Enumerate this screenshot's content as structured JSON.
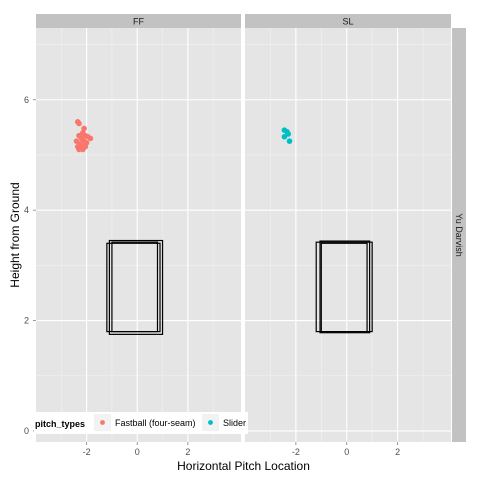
{
  "chart_data": {
    "type": "scatter",
    "facets": [
      "FF",
      "SL"
    ],
    "row_strip": "Yu Darvish",
    "xlabel": "Horizontal Pitch Location",
    "ylabel": "Height from Ground",
    "xlim": [
      -4,
      4.1
    ],
    "ylim": [
      -0.2,
      7.3
    ],
    "x_ticks": [
      -2,
      0,
      2
    ],
    "y_ticks": [
      0,
      2,
      4,
      6
    ],
    "grid": true,
    "legend": {
      "title": "pitch_types",
      "placement": "bottom-left",
      "entries": [
        {
          "label": "Fastball (four-seam)",
          "color": "#F8766D"
        },
        {
          "label": "Slider",
          "color": "#00BFC4"
        }
      ]
    },
    "strike_zones": {
      "FF": [
        {
          "x0": -1.2,
          "x1": 0.9,
          "y0": 1.8,
          "y1": 3.4
        },
        {
          "x0": -1.1,
          "x1": 1.0,
          "y0": 1.75,
          "y1": 3.45
        },
        {
          "x0": -1.0,
          "x1": 0.8,
          "y0": 1.8,
          "y1": 3.42
        }
      ],
      "SL": [
        {
          "x0": -1.2,
          "x1": 1.0,
          "y0": 1.8,
          "y1": 3.42
        },
        {
          "x0": -1.05,
          "x1": 0.9,
          "y0": 1.78,
          "y1": 3.44
        },
        {
          "x0": -1.0,
          "x1": 0.8,
          "y0": 1.8,
          "y1": 3.4
        }
      ]
    },
    "series": [
      {
        "name": "Fastball (four-seam)",
        "facet": "FF",
        "color": "#F8766D",
        "points": [
          {
            "x": -2.35,
            "y": 5.6
          },
          {
            "x": -2.3,
            "y": 5.57
          },
          {
            "x": -2.1,
            "y": 5.48
          },
          {
            "x": -2.15,
            "y": 5.4
          },
          {
            "x": -2.3,
            "y": 5.35
          },
          {
            "x": -2.05,
            "y": 5.35
          },
          {
            "x": -1.95,
            "y": 5.33
          },
          {
            "x": -1.85,
            "y": 5.3
          },
          {
            "x": -2.2,
            "y": 5.3
          },
          {
            "x": -2.4,
            "y": 5.25
          },
          {
            "x": -2.1,
            "y": 5.25
          },
          {
            "x": -2.0,
            "y": 5.22
          },
          {
            "x": -2.25,
            "y": 5.2
          },
          {
            "x": -2.35,
            "y": 5.15
          },
          {
            "x": -2.15,
            "y": 5.15
          },
          {
            "x": -2.05,
            "y": 5.15
          },
          {
            "x": -2.3,
            "y": 5.1
          },
          {
            "x": -2.15,
            "y": 5.1
          }
        ]
      },
      {
        "name": "Slider",
        "facet": "SL",
        "color": "#00BFC4",
        "points": [
          {
            "x": -2.45,
            "y": 5.45
          },
          {
            "x": -2.35,
            "y": 5.42
          },
          {
            "x": -2.3,
            "y": 5.38
          },
          {
            "x": -2.45,
            "y": 5.33
          },
          {
            "x": -2.25,
            "y": 5.25
          }
        ]
      }
    ]
  }
}
